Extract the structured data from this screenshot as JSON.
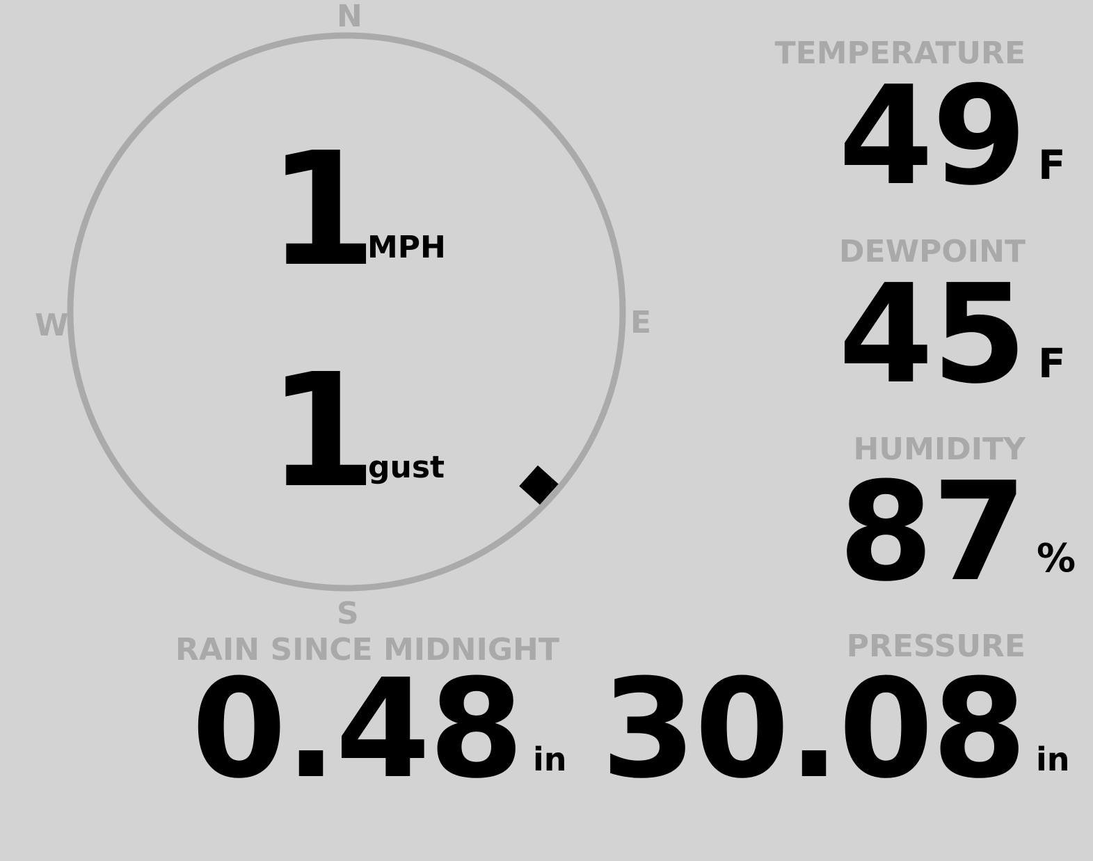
{
  "colors": {
    "background": "#d3d3d3",
    "muted": "#a9a9a9",
    "value": "#000000"
  },
  "wind": {
    "compass": {
      "north": "N",
      "east": "E",
      "south": "S",
      "west": "W"
    },
    "speed": "1",
    "speed_unit": "MPH",
    "gust": "1",
    "gust_unit": "gust",
    "direction_degrees": 132,
    "marker_icon": "diamond-icon"
  },
  "temperature": {
    "label": "TEMPERATURE",
    "value": "49",
    "unit": "F"
  },
  "dewpoint": {
    "label": "DEWPOINT",
    "value": "45",
    "unit": "F"
  },
  "humidity": {
    "label": "HUMIDITY",
    "value": "87",
    "unit": "%"
  },
  "rain": {
    "label": "RAIN SINCE MIDNIGHT",
    "value": "0.48",
    "unit": "in"
  },
  "pressure": {
    "label": "PRESSURE",
    "value": "30.08",
    "unit": "in"
  }
}
